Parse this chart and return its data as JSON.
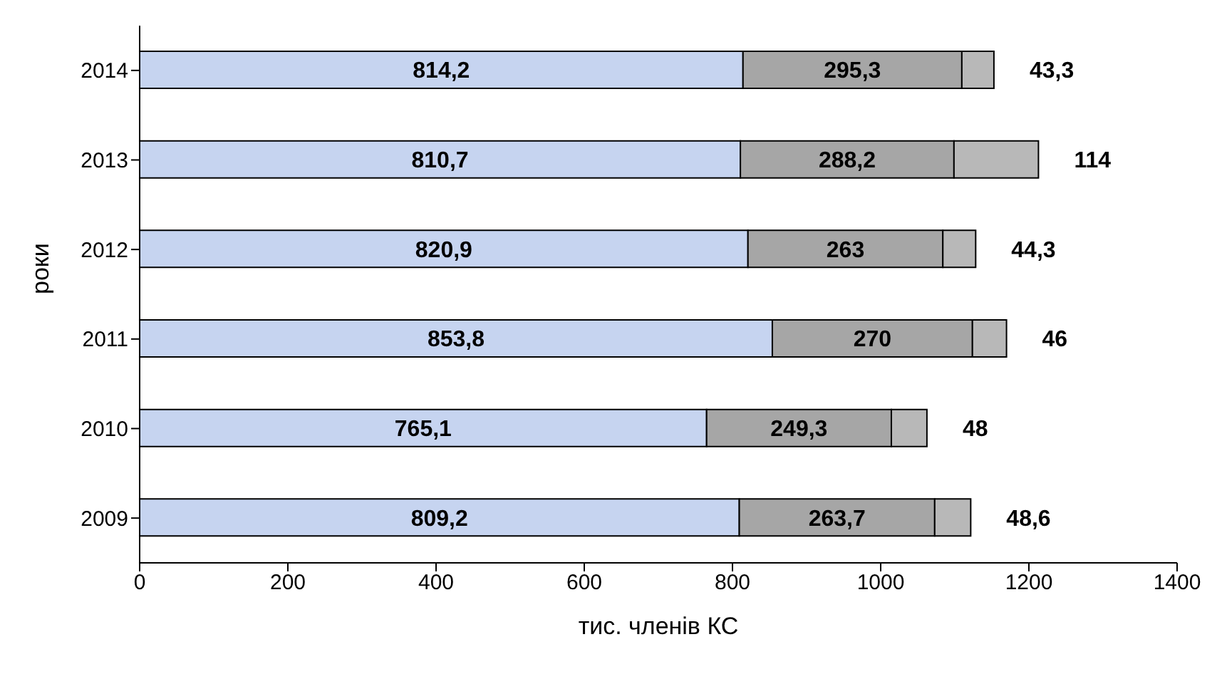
{
  "chart_data": {
    "type": "bar",
    "orientation": "horizontal",
    "stacked": true,
    "xlabel": "тис. членів КС",
    "ylabel": "роки",
    "categories": [
      "2014",
      "2013",
      "2012",
      "2011",
      "2010",
      "2009"
    ],
    "series": [
      {
        "color": "#c6d4f0",
        "values": [
          814.2,
          810.7,
          820.9,
          853.8,
          765.1,
          809.2
        ],
        "value_labels": [
          "814,2",
          "810,7",
          "820,9",
          "853,8",
          "765,1",
          "809,2"
        ]
      },
      {
        "color": "#a6a6a6",
        "values": [
          295.3,
          288.2,
          263,
          270,
          249.3,
          263.7
        ],
        "value_labels": [
          "295,3",
          "288,2",
          "263",
          "270",
          "249,3",
          "263,7"
        ]
      },
      {
        "color": "#b8b8b8",
        "values": [
          43.3,
          114,
          44.3,
          46,
          48,
          48.6
        ],
        "value_labels": [
          "43,3",
          "114",
          "44,3",
          "46",
          "48",
          "48,6"
        ]
      }
    ],
    "xlim": [
      0,
      1400
    ],
    "xticks": [
      0,
      200,
      400,
      600,
      800,
      1000,
      1200,
      1400
    ],
    "grid": false,
    "legend": false,
    "data_labels": true
  }
}
